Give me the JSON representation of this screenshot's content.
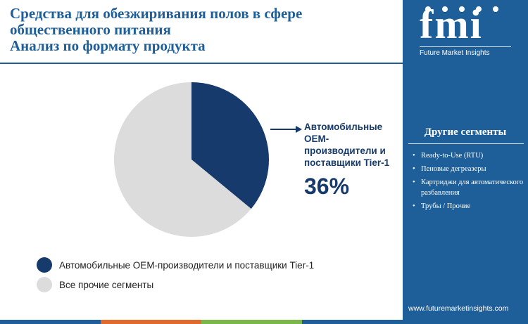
{
  "title": {
    "line1": "Средства для обезжиривания полов в сфере",
    "line2": "общественного питания",
    "line3": "Анализ по формату продукта"
  },
  "colors": {
    "brand": "#1f5f99",
    "highlight": "#153a6b",
    "other": "#dcdcdc",
    "bar": [
      "#1f5f99",
      "#e06a2b",
      "#7ab648",
      "#1f5f99"
    ]
  },
  "chart_data": {
    "type": "pie",
    "title": "Анализ по формату продукта",
    "slices": [
      {
        "label": "Автомобильные OEM-производители и поставщики Tier-1",
        "value": 36,
        "color": "#153a6b"
      },
      {
        "label": "Все прочие сегменты",
        "value": 64,
        "color": "#dcdcdc"
      }
    ],
    "highlight": {
      "label": "Автомобильные OEM-производители и поставщики Tier-1",
      "value_text": "36%"
    },
    "legend_position": "bottom-left"
  },
  "callout": {
    "line1": "Автомобильные",
    "line2": "OEM-",
    "line3": "производители и",
    "line4": "поставщики Tier-1",
    "value": "36%"
  },
  "legend": {
    "items": [
      {
        "label": "Автомобильные OEM-производители и поставщики Tier-1"
      },
      {
        "label": "Все прочие сегменты"
      }
    ]
  },
  "sidebar": {
    "logo": "fmi",
    "logo_sub": "Future Market Insights",
    "segments_title": "Другие сегменты",
    "segments": [
      "Ready-to-Use (RTU)",
      "Пеновые дегреазеры",
      "Картриджи для автоматического разбавления",
      "Трубы / Прочие"
    ],
    "url": "www.futuremarketinsights.com"
  }
}
